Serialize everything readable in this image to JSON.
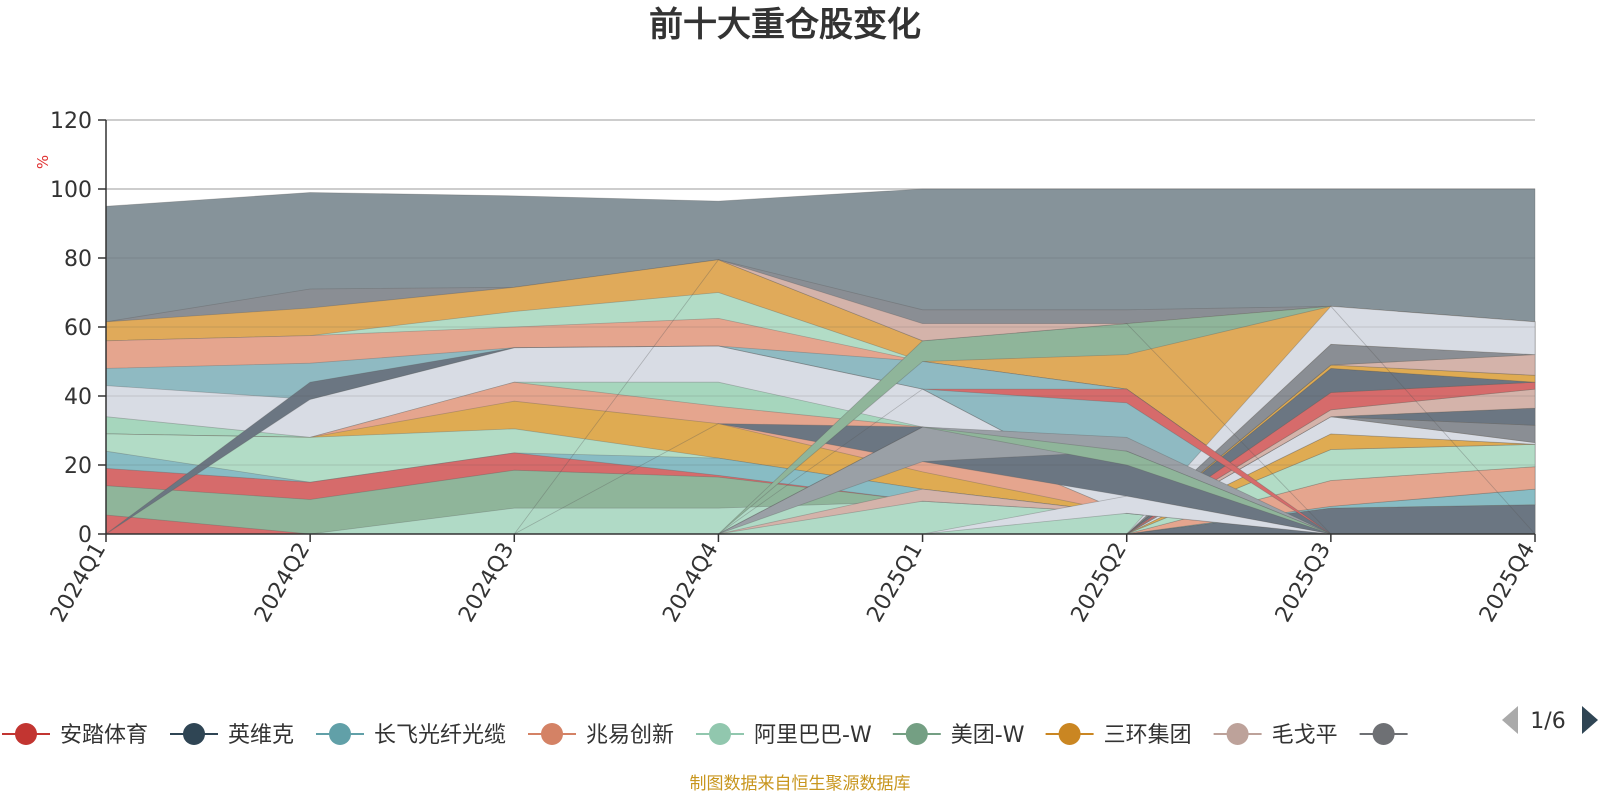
{
  "title": "前十大重仓股变化",
  "footer": "制图数据来自恒生聚源数据库",
  "legend_page": "1/6",
  "chart_data": {
    "type": "area",
    "title": "前十大重仓股变化",
    "ylabel": "%",
    "ylim": [
      0,
      120
    ],
    "yticks": [
      "0",
      "20",
      "40",
      "60",
      "80",
      "100",
      "120"
    ],
    "categories": [
      "2024Q1",
      "2024Q2",
      "2024Q3",
      "2024Q4",
      "2025Q1",
      "2025Q2",
      "2025Q3",
      "2025Q4"
    ],
    "grid": true,
    "legend_position": "bottom",
    "layers": [
      {
        "color": "#d66b6b",
        "values": [
          5.5,
          0,
          0,
          0,
          0,
          0,
          0,
          0
        ]
      },
      {
        "color": "#8fb59a",
        "values": [
          14,
          10,
          18.5,
          16.5,
          9.5,
          6,
          0,
          0
        ]
      },
      {
        "color": "#d66b6b",
        "values": [
          19,
          15,
          23.5,
          17,
          9.5,
          6,
          0,
          0
        ]
      },
      {
        "color": "#88bcc4",
        "values": [
          24,
          15,
          23.5,
          22,
          13,
          6,
          0,
          0
        ]
      },
      {
        "color": "#b2dcc6",
        "values": [
          29,
          28,
          30.5,
          22,
          13,
          6,
          0,
          0
        ]
      },
      {
        "color": "#dfab52",
        "values": [
          29,
          28,
          38.5,
          32,
          18,
          6,
          0,
          0
        ]
      },
      {
        "color": "#e5a58e",
        "values": [
          29,
          28,
          44,
          37,
          31,
          6,
          0,
          0
        ]
      },
      {
        "color": "#a6d6bd",
        "values": [
          34,
          28,
          44,
          44,
          31,
          6,
          0,
          0
        ]
      },
      {
        "color": "#d8dce4",
        "values": [
          43,
          39,
          54,
          54.5,
          42,
          11,
          0,
          0
        ]
      },
      {
        "color": "#8fbac2",
        "values": [
          48,
          49.5,
          54,
          54.5,
          50,
          42,
          0,
          0
        ]
      },
      {
        "color": "#e5a58e",
        "values": [
          56,
          57.5,
          60,
          62.5,
          50,
          42,
          0,
          0
        ]
      },
      {
        "color": "#b2dcc6",
        "values": [
          56,
          57.5,
          64.5,
          70,
          50,
          42,
          0,
          0
        ]
      },
      {
        "color": "#e0aa5a",
        "values": [
          61.5,
          65.5,
          71.5,
          79.5,
          56,
          61,
          66,
          61.5
        ]
      },
      {
        "color": "#8a8e94",
        "values": [
          61.5,
          71,
          71.5,
          79.5,
          65,
          65,
          66,
          61.5
        ]
      },
      {
        "color": "#86939a",
        "values": [
          95,
          99,
          98,
          96.5,
          100,
          100,
          100,
          100
        ]
      }
    ],
    "overlays": [
      {
        "color": "#b0dac6",
        "opacity": 1.0,
        "upper": [
          0,
          0,
          7.5,
          7.5,
          9.5,
          6,
          0,
          0
        ],
        "lower": [
          0,
          0,
          0,
          0,
          0,
          0,
          0,
          0
        ]
      },
      {
        "color": "#6b7682",
        "opacity": 1.0,
        "upper": [
          0,
          0,
          0,
          0,
          0,
          0,
          7.5,
          8.5
        ],
        "lower": [
          0,
          0,
          0,
          0,
          0,
          0,
          0,
          0
        ]
      },
      {
        "color": "#88bcc4",
        "opacity": 1.0,
        "upper": [
          0,
          0,
          0,
          0,
          0,
          0,
          8,
          13
        ],
        "lower": [
          0,
          0,
          0,
          0,
          0,
          0,
          7.5,
          8.5
        ]
      },
      {
        "color": "#e5a58e",
        "opacity": 1.0,
        "upper": [
          0,
          0,
          0,
          0,
          0,
          0,
          15.5,
          19.5
        ],
        "lower": [
          0,
          0,
          0,
          0,
          0,
          0,
          8,
          13
        ]
      },
      {
        "color": "#b2dcc6",
        "opacity": 1.0,
        "upper": [
          0,
          0,
          0,
          0,
          0,
          0,
          24.5,
          26
        ],
        "lower": [
          0,
          0,
          0,
          0,
          0,
          0,
          15.5,
          19.5
        ]
      },
      {
        "color": "#dfab52",
        "opacity": 1.0,
        "upper": [
          0,
          0,
          0,
          0,
          0,
          0,
          29,
          26
        ],
        "lower": [
          0,
          0,
          0,
          0,
          0,
          0,
          24.5,
          26
        ]
      },
      {
        "color": "#d8dce4",
        "opacity": 1.0,
        "upper": [
          0,
          0,
          0,
          0,
          0,
          0,
          34,
          26.5
        ],
        "lower": [
          0,
          0,
          0,
          0,
          0,
          0,
          29,
          26
        ]
      },
      {
        "color": "#8a8e94",
        "opacity": 1.0,
        "upper": [
          0,
          0,
          0,
          0,
          0,
          0,
          34,
          31.5
        ],
        "lower": [
          0,
          0,
          0,
          0,
          0,
          0,
          34,
          26.5
        ]
      },
      {
        "color": "#6b7682",
        "opacity": 1.0,
        "upper": [
          0,
          0,
          0,
          0,
          0,
          0,
          34,
          36.5
        ],
        "lower": [
          0,
          0,
          0,
          0,
          0,
          0,
          34,
          31.5
        ]
      },
      {
        "color": "#d4b3aa",
        "opacity": 1.0,
        "upper": [
          0,
          0,
          0,
          0,
          0,
          0,
          36,
          42
        ],
        "lower": [
          0,
          0,
          0,
          0,
          0,
          0,
          34,
          36.5
        ]
      },
      {
        "color": "#d66b6b",
        "opacity": 1.0,
        "upper": [
          0,
          0,
          0,
          0,
          0,
          0,
          41,
          44
        ],
        "lower": [
          0,
          0,
          0,
          0,
          0,
          0,
          36,
          42
        ]
      },
      {
        "color": "#6b7682",
        "opacity": 1.0,
        "upper": [
          0,
          0,
          0,
          0,
          0,
          0,
          48,
          44
        ],
        "lower": [
          0,
          0,
          0,
          0,
          0,
          0,
          41,
          44
        ]
      },
      {
        "color": "#dfab52",
        "opacity": 1.0,
        "upper": [
          0,
          0,
          0,
          0,
          0,
          0,
          49,
          46
        ],
        "lower": [
          0,
          0,
          0,
          0,
          0,
          0,
          48,
          44
        ]
      },
      {
        "color": "#d4b3aa",
        "opacity": 1.0,
        "upper": [
          0,
          0,
          0,
          0,
          0,
          0,
          49,
          52
        ],
        "lower": [
          0,
          0,
          0,
          0,
          0,
          0,
          49,
          46
        ]
      },
      {
        "color": "#8a8e94",
        "opacity": 1.0,
        "upper": [
          0,
          0,
          0,
          0,
          0,
          0,
          55,
          52
        ],
        "lower": [
          0,
          0,
          0,
          0,
          0,
          0,
          49,
          52
        ]
      },
      {
        "color": "#d8dce4",
        "opacity": 1.0,
        "upper": [
          0,
          0,
          0,
          0,
          0,
          0,
          66,
          61.5
        ],
        "lower": [
          0,
          0,
          0,
          0,
          0,
          0,
          55,
          52
        ]
      },
      {
        "color": "#6b7682",
        "opacity": 1.0,
        "upper": [
          0,
          44,
          54,
          54.5,
          42,
          11,
          0,
          0
        ],
        "lower": [
          0,
          39,
          54,
          54.5,
          42,
          11,
          0,
          0
        ]
      },
      {
        "color": "#6b7682",
        "opacity": 1.0,
        "upper": [
          0,
          0,
          0,
          32,
          31,
          27,
          0,
          0
        ],
        "lower": [
          0,
          0,
          0,
          32,
          21,
          11,
          0,
          0
        ]
      },
      {
        "color": "#d66b6b",
        "opacity": 1.0,
        "upper": [
          0,
          0,
          0,
          0,
          42,
          42,
          0,
          0
        ],
        "lower": [
          0,
          0,
          0,
          0,
          42,
          38,
          0,
          0
        ]
      },
      {
        "color": "#8fb59a",
        "opacity": 1.0,
        "upper": [
          0,
          0,
          0,
          0,
          56,
          61,
          66,
          0
        ],
        "lower": [
          0,
          0,
          0,
          0,
          50,
          52,
          66,
          0
        ]
      },
      {
        "color": "#d4b3aa",
        "opacity": 1.0,
        "upper": [
          0,
          0,
          0,
          79.5,
          61,
          61,
          0,
          0
        ],
        "lower": [
          0,
          0,
          0,
          79.5,
          56,
          61,
          0,
          0
        ]
      },
      {
        "color": "#9aa0a6",
        "opacity": 1.0,
        "upper": [
          0,
          0,
          0,
          0,
          31,
          28,
          0,
          0
        ],
        "lower": [
          0,
          0,
          0,
          0,
          21,
          24,
          0,
          0
        ]
      },
      {
        "color": "#8fb59a",
        "opacity": 1.0,
        "upper": [
          0,
          0,
          0,
          0,
          31,
          24,
          0,
          0
        ],
        "lower": [
          0,
          0,
          0,
          0,
          31,
          20,
          0,
          0
        ]
      },
      {
        "color": "#d4b3aa",
        "opacity": 1.0,
        "upper": [
          0,
          0,
          0,
          0,
          13,
          6,
          0,
          0
        ],
        "lower": [
          0,
          0,
          0,
          0,
          9.5,
          6,
          0,
          0
        ]
      },
      {
        "color": "#d8dce4",
        "opacity": 1.0,
        "upper": [
          0,
          0,
          0,
          0,
          0,
          11,
          0,
          0
        ],
        "lower": [
          0,
          0,
          0,
          0,
          0,
          6,
          0,
          0
        ]
      }
    ],
    "legend": [
      {
        "name": "安踏体育",
        "color": "#c23531"
      },
      {
        "name": "英维克",
        "color": "#2f4554"
      },
      {
        "name": "长飞光纤光缆",
        "color": "#61a0a8"
      },
      {
        "name": "兆易创新",
        "color": "#d48265"
      },
      {
        "name": "阿里巴巴-W",
        "color": "#91c7ae"
      },
      {
        "name": "美团-W",
        "color": "#749f83"
      },
      {
        "name": "三环集团",
        "color": "#ca8622"
      },
      {
        "name": "毛戈平",
        "color": "#bda29a"
      },
      {
        "name": "",
        "color": "#6e7074"
      }
    ]
  }
}
